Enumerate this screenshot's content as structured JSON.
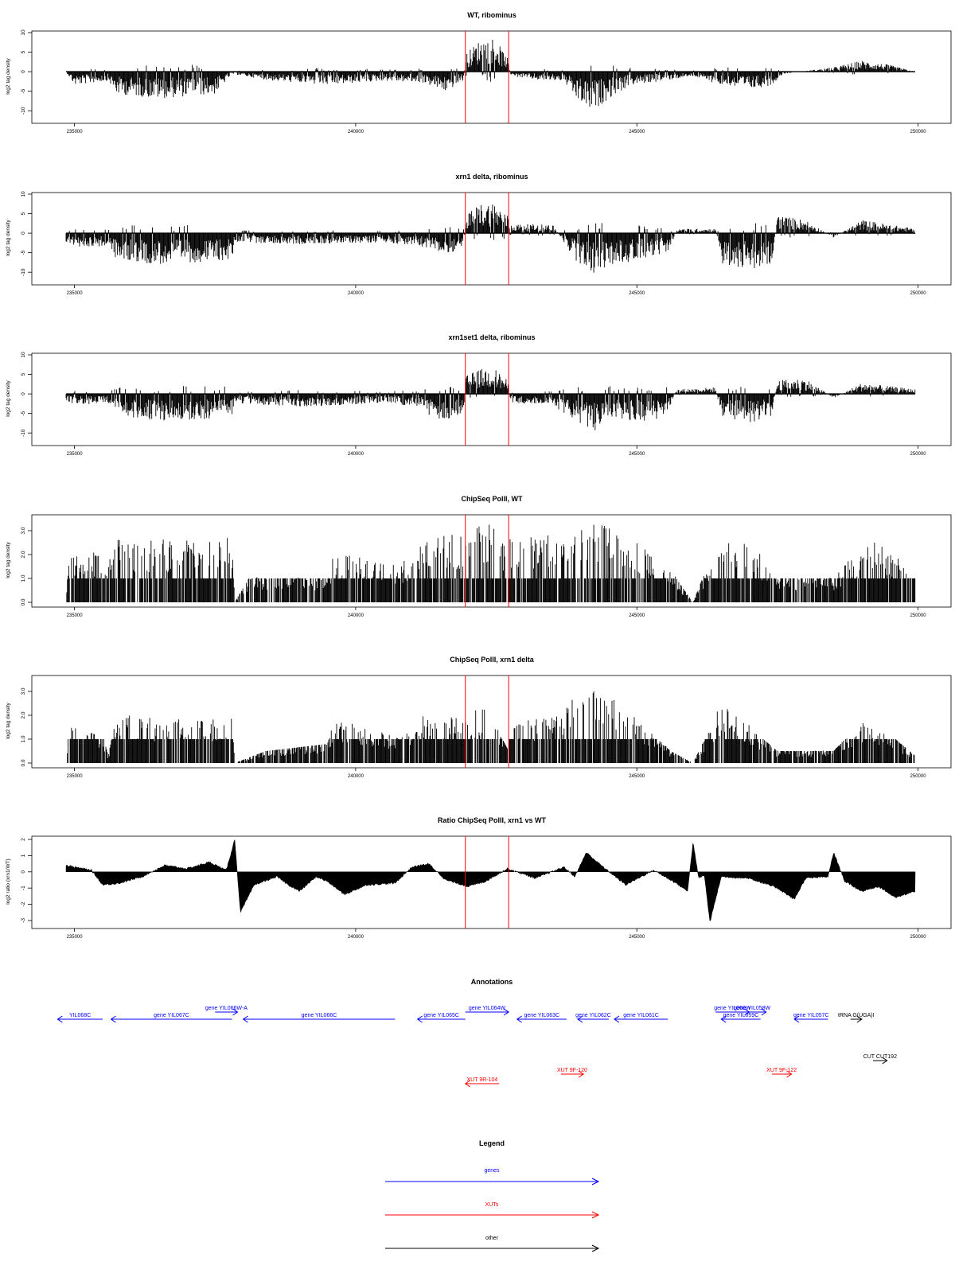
{
  "colors": {
    "gene": "#0000ff",
    "xut": "#ff0000",
    "other": "#000000",
    "marker": "#ff0000",
    "bars": "#000000"
  },
  "x_ticks": [
    "235000",
    "240000",
    "245000",
    "250000"
  ],
  "chart_data": [
    {
      "type": "bar",
      "title": "WT, ribominus",
      "ylabel": "log2 tag density",
      "xlim": [
        234850,
        249950
      ],
      "ylim": [
        -12,
        10
      ],
      "yticks": [
        -10,
        -5,
        0,
        5,
        10
      ],
      "marker_lines_x": [
        241950,
        242720
      ],
      "profile": [
        [
          234850,
          0
        ],
        [
          235000,
          -3
        ],
        [
          235600,
          -2
        ],
        [
          235750,
          -5
        ],
        [
          236500,
          -6
        ],
        [
          237500,
          -5
        ],
        [
          237800,
          -0.5
        ],
        [
          238500,
          -2
        ],
        [
          239500,
          -3
        ],
        [
          240500,
          -2
        ],
        [
          241200,
          -2.5
        ],
        [
          241600,
          -4.5
        ],
        [
          241920,
          -2
        ],
        [
          241960,
          4
        ],
        [
          242200,
          7
        ],
        [
          242450,
          8
        ],
        [
          242700,
          3
        ],
        [
          242760,
          -1
        ],
        [
          243300,
          -2
        ],
        [
          243700,
          -2
        ],
        [
          243900,
          -6
        ],
        [
          244200,
          -9
        ],
        [
          244500,
          -6
        ],
        [
          244900,
          -3
        ],
        [
          245500,
          -2
        ],
        [
          246000,
          -1
        ],
        [
          246500,
          -3
        ],
        [
          247000,
          -4
        ],
        [
          247400,
          -3
        ],
        [
          247600,
          -0.5
        ],
        [
          248500,
          1
        ],
        [
          249000,
          2.5
        ],
        [
          249500,
          1.5
        ],
        [
          249950,
          0
        ]
      ]
    },
    {
      "type": "bar",
      "title": "xrn1 delta, ribominus",
      "ylabel": "log2 tag density",
      "xlim": [
        234850,
        249950
      ],
      "ylim": [
        -12,
        10
      ],
      "yticks": [
        -10,
        -5,
        0,
        5,
        10
      ],
      "marker_lines_x": [
        241950,
        242720
      ],
      "profile": [
        [
          234850,
          -2
        ],
        [
          235000,
          -3
        ],
        [
          235600,
          -3
        ],
        [
          235750,
          -6
        ],
        [
          236500,
          -7
        ],
        [
          237800,
          -6
        ],
        [
          237850,
          -2
        ],
        [
          239000,
          -2.5
        ],
        [
          240500,
          -2
        ],
        [
          241200,
          -3
        ],
        [
          241600,
          -5
        ],
        [
          241920,
          -3
        ],
        [
          241960,
          4
        ],
        [
          242200,
          6.5
        ],
        [
          242450,
          7
        ],
        [
          242700,
          4
        ],
        [
          242760,
          2
        ],
        [
          243500,
          2
        ],
        [
          243900,
          -6
        ],
        [
          244200,
          -9
        ],
        [
          244600,
          -7
        ],
        [
          245000,
          -6
        ],
        [
          245600,
          -4
        ],
        [
          245700,
          1
        ],
        [
          246400,
          1
        ],
        [
          246500,
          -7
        ],
        [
          247000,
          -8
        ],
        [
          247400,
          -7
        ],
        [
          247500,
          4
        ],
        [
          248000,
          3
        ],
        [
          248500,
          -1
        ],
        [
          249000,
          3
        ],
        [
          249950,
          1
        ]
      ]
    },
    {
      "type": "bar",
      "title": "xrn1set1 delta, ribominus",
      "ylabel": "log2 tag density",
      "xlim": [
        234850,
        249950
      ],
      "ylim": [
        -12,
        10
      ],
      "yticks": [
        -10,
        -5,
        0,
        5,
        10
      ],
      "marker_lines_x": [
        241950,
        242720
      ],
      "profile": [
        [
          234850,
          -1.5
        ],
        [
          235000,
          -2.5
        ],
        [
          235600,
          -2
        ],
        [
          235750,
          -5
        ],
        [
          236500,
          -6
        ],
        [
          237800,
          -5.5
        ],
        [
          237850,
          -2
        ],
        [
          239000,
          -3
        ],
        [
          240500,
          -2
        ],
        [
          241200,
          -3
        ],
        [
          241400,
          -6.5
        ],
        [
          241920,
          -5
        ],
        [
          241960,
          4
        ],
        [
          242200,
          5.5
        ],
        [
          242450,
          6
        ],
        [
          242700,
          3
        ],
        [
          242760,
          -2
        ],
        [
          243500,
          -2.5
        ],
        [
          243900,
          -6
        ],
        [
          244200,
          -8.5
        ],
        [
          244600,
          -6
        ],
        [
          245500,
          -6
        ],
        [
          245700,
          1
        ],
        [
          246400,
          1.5
        ],
        [
          246500,
          -5
        ],
        [
          247000,
          -6.5
        ],
        [
          247400,
          -5
        ],
        [
          247500,
          3
        ],
        [
          248000,
          3.5
        ],
        [
          248500,
          -1
        ],
        [
          249000,
          2.5
        ],
        [
          249950,
          1
        ]
      ]
    },
    {
      "type": "bar",
      "title": "ChipSeq PolII, WT",
      "ylabel": "log2 tag density",
      "xlim": [
        234850,
        249950
      ],
      "ylim": [
        0,
        3.6
      ],
      "yticks": [
        0.0,
        1.0,
        2.0,
        3.0
      ],
      "marker_lines_x": [
        241950,
        242720
      ],
      "profile": [
        [
          234850,
          0
        ],
        [
          234900,
          2
        ],
        [
          235500,
          2
        ],
        [
          235600,
          1.5
        ],
        [
          235750,
          2.6
        ],
        [
          236500,
          2.5
        ],
        [
          237800,
          2.6
        ],
        [
          237850,
          0
        ],
        [
          238100,
          1
        ],
        [
          239500,
          1
        ],
        [
          239600,
          2
        ],
        [
          240800,
          1.5
        ],
        [
          241200,
          2.5
        ],
        [
          241950,
          2.8
        ],
        [
          242300,
          3.3
        ],
        [
          242700,
          2.5
        ],
        [
          242750,
          2.8
        ],
        [
          243700,
          2.8
        ],
        [
          243900,
          2.8
        ],
        [
          244300,
          3.4
        ],
        [
          244600,
          2.8
        ],
        [
          245000,
          2.5
        ],
        [
          245700,
          1
        ],
        [
          246000,
          0
        ],
        [
          246500,
          3
        ],
        [
          247000,
          2.5
        ],
        [
          247500,
          1
        ],
        [
          248500,
          1
        ],
        [
          248900,
          2
        ],
        [
          249100,
          3
        ],
        [
          249500,
          2
        ],
        [
          249950,
          1.5
        ]
      ]
    },
    {
      "type": "bar",
      "title": "ChipSeq PolII, xrn1 delta",
      "ylabel": "log2 tag density",
      "xlim": [
        234850,
        249950
      ],
      "ylim": [
        0,
        3.6
      ],
      "yticks": [
        0.0,
        1.0,
        2.0,
        3.0
      ],
      "marker_lines_x": [
        241950,
        242720
      ],
      "profile": [
        [
          234850,
          0
        ],
        [
          234900,
          1.6
        ],
        [
          235500,
          1.2
        ],
        [
          235600,
          0.3
        ],
        [
          235750,
          2
        ],
        [
          236500,
          1.8
        ],
        [
          237800,
          1.8
        ],
        [
          237850,
          0
        ],
        [
          238400,
          0.5
        ],
        [
          239500,
          0.8
        ],
        [
          239600,
          1.8
        ],
        [
          240800,
          1
        ],
        [
          241200,
          2
        ],
        [
          241950,
          1.8
        ],
        [
          242300,
          2.4
        ],
        [
          242700,
          0.6
        ],
        [
          242750,
          1.5
        ],
        [
          243700,
          2.2
        ],
        [
          243900,
          2.8
        ],
        [
          244300,
          3.2
        ],
        [
          244600,
          2.5
        ],
        [
          245000,
          1.8
        ],
        [
          245600,
          0.5
        ],
        [
          246000,
          0
        ],
        [
          246500,
          2.4
        ],
        [
          247000,
          1.5
        ],
        [
          247500,
          0.5
        ],
        [
          248500,
          0.5
        ],
        [
          248900,
          1.5
        ],
        [
          249100,
          1.8
        ],
        [
          249500,
          1.2
        ],
        [
          249950,
          0.3
        ]
      ]
    },
    {
      "type": "area",
      "title": "Ratio ChipSeq PolII, xrn1 vs WT",
      "ylabel": "log2 ratio (xrn1/WT)",
      "xlim": [
        234850,
        249950
      ],
      "ylim": [
        -3.2,
        2.1
      ],
      "yticks": [
        -3,
        -2,
        -1,
        0,
        1,
        2
      ],
      "marker_lines_x": [
        241950,
        242720
      ],
      "profile": [
        [
          234850,
          0.4
        ],
        [
          235000,
          0.3
        ],
        [
          235300,
          0.1
        ],
        [
          235500,
          -0.8
        ],
        [
          235800,
          -0.7
        ],
        [
          236200,
          -0.3
        ],
        [
          236600,
          0.4
        ],
        [
          237000,
          0.2
        ],
        [
          237400,
          0.6
        ],
        [
          237700,
          0.1
        ],
        [
          237850,
          2.0
        ],
        [
          237950,
          -2.5
        ],
        [
          238200,
          -0.8
        ],
        [
          238600,
          -0.3
        ],
        [
          238800,
          -0.8
        ],
        [
          239000,
          -1.2
        ],
        [
          239300,
          -0.3
        ],
        [
          239500,
          -0.6
        ],
        [
          239800,
          -1.4
        ],
        [
          240200,
          -0.8
        ],
        [
          240700,
          -0.7
        ],
        [
          241000,
          0.3
        ],
        [
          241300,
          0.5
        ],
        [
          241600,
          -0.5
        ],
        [
          242000,
          -0.9
        ],
        [
          242300,
          -0.6
        ],
        [
          242700,
          0.2
        ],
        [
          243200,
          -0.4
        ],
        [
          243700,
          0.3
        ],
        [
          243900,
          -0.3
        ],
        [
          244100,
          1.2
        ],
        [
          244400,
          0.3
        ],
        [
          244800,
          -0.8
        ],
        [
          245300,
          0.1
        ],
        [
          245700,
          -0.7
        ],
        [
          245900,
          -1.2
        ],
        [
          246000,
          1.8
        ],
        [
          246100,
          -0.4
        ],
        [
          246200,
          -0.2
        ],
        [
          246300,
          -3.1
        ],
        [
          246500,
          -0.3
        ],
        [
          247000,
          -0.4
        ],
        [
          247500,
          -1.0
        ],
        [
          247800,
          -1.7
        ],
        [
          248000,
          -0.4
        ],
        [
          248400,
          -0.3
        ],
        [
          248500,
          1.2
        ],
        [
          248700,
          -0.6
        ],
        [
          249000,
          -1.2
        ],
        [
          249300,
          -0.9
        ],
        [
          249600,
          -1.6
        ],
        [
          249950,
          -1.2
        ]
      ]
    }
  ],
  "annotations": {
    "title": "Annotations",
    "genes": [
      {
        "label": "YIL068C",
        "start": 234700,
        "end": 235500,
        "strand": "-",
        "row": 2
      },
      {
        "label": "gene YIL067C",
        "start": 235650,
        "end": 237800,
        "strand": "-",
        "row": 2
      },
      {
        "label": "gene YIL066W-A",
        "start": 237500,
        "end": 237900,
        "strand": "+",
        "row": 1
      },
      {
        "label": "gene YIL066C",
        "start": 238000,
        "end": 240700,
        "strand": "-",
        "row": 2
      },
      {
        "label": "gene YIL065C",
        "start": 241100,
        "end": 241950,
        "strand": "-",
        "row": 2
      },
      {
        "label": "gene YIL064W",
        "start": 241950,
        "end": 242720,
        "strand": "+",
        "row": 1
      },
      {
        "label": "gene YIL063C",
        "start": 242870,
        "end": 243750,
        "strand": "-",
        "row": 2
      },
      {
        "label": "gene YIL062C",
        "start": 243950,
        "end": 244500,
        "strand": "-",
        "row": 2
      },
      {
        "label": "gene YIL061C",
        "start": 244600,
        "end": 245550,
        "strand": "-",
        "row": 2
      },
      {
        "label": "gene YIL060W",
        "start": 246400,
        "end": 247000,
        "strand": "+",
        "row": 1
      },
      {
        "label": "gene YIL058W",
        "start": 246800,
        "end": 247300,
        "strand": "+",
        "row": 1
      },
      {
        "label": "gene YIL059C",
        "start": 246500,
        "end": 247200,
        "strand": "-",
        "row": 2
      },
      {
        "label": "gene YIL057C",
        "start": 247800,
        "end": 248400,
        "strand": "-",
        "row": 2
      }
    ],
    "xuts": [
      {
        "label": "XUT 9R-104",
        "start": 241950,
        "end": 242550,
        "strand": "-",
        "row": 4
      },
      {
        "label": "XUT 9F-120",
        "start": 243650,
        "end": 244050,
        "strand": "+",
        "row": 3
      },
      {
        "label": "XUT 9F-122",
        "start": 247400,
        "end": 247750,
        "strand": "+",
        "row": 3
      }
    ],
    "other": [
      {
        "label": "tRNA G(UGA)I",
        "start": 248800,
        "end": 249000,
        "strand": "+",
        "row": 2
      },
      {
        "label": "CUT CUT192",
        "start": 249200,
        "end": 249450,
        "strand": "+",
        "row": 5
      }
    ]
  },
  "legend": {
    "title": "Legend",
    "items": [
      {
        "label": "genes",
        "color": "#0000ff"
      },
      {
        "label": "XUTs",
        "color": "#ff0000"
      },
      {
        "label": "other",
        "color": "#000000"
      }
    ]
  }
}
